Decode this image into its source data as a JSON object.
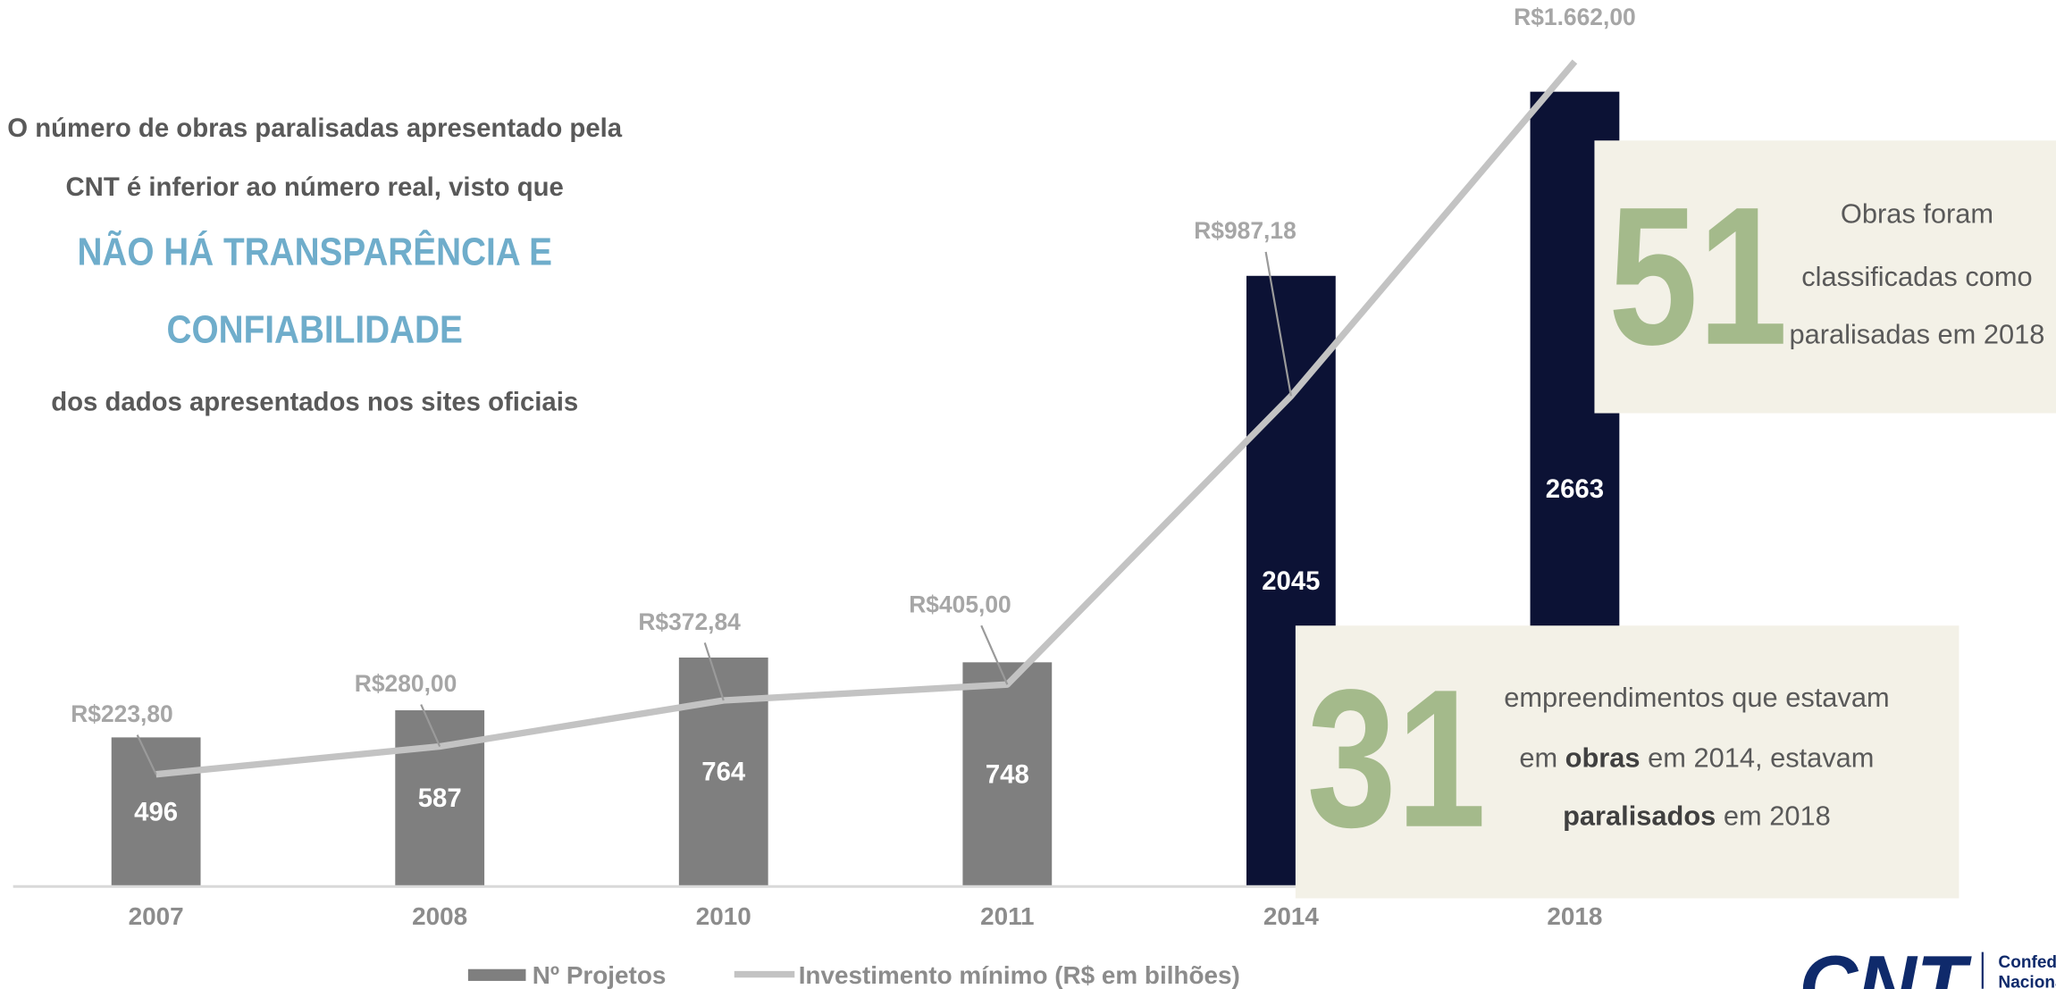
{
  "chart_data": {
    "type": "bar",
    "categories": [
      "2007",
      "2008",
      "2010",
      "2011",
      "2014",
      "2018"
    ],
    "ylim": [
      0,
      2970
    ],
    "y2lim": [
      0,
      1786
    ],
    "legend": "bottom",
    "series": [
      {
        "name": "Nº Projetos",
        "type": "bar",
        "color": "#7f7f7f",
        "colors": [
          "#7f7f7f",
          "#7f7f7f",
          "#7f7f7f",
          "#7f7f7f",
          "#0c1235",
          "#0c1235"
        ],
        "values": [
          496,
          587,
          764,
          748,
          2045,
          2663
        ]
      },
      {
        "name": "Investimento mínimo (R$ em bilhões)",
        "type": "line",
        "color": "#c3c3c3",
        "axis": "y2",
        "values": [
          223.8,
          280.0,
          372.84,
          405.0,
          987.18,
          1662.0
        ],
        "value_labels": [
          "R$223,80",
          "R$280,00",
          "R$372,84",
          "R$405,00",
          "R$987,18",
          "R$1.662,00"
        ]
      }
    ]
  },
  "annotation": {
    "lines": [
      {
        "text": "O número de obras paralisadas apresentado pela",
        "highlight": false
      },
      {
        "text": "CNT é inferior ao número real, visto que",
        "highlight": false
      },
      {
        "text": "NÃO HÁ TRANSPARÊNCIA E",
        "highlight": true
      },
      {
        "text": "CONFIABILIDADE",
        "highlight": true
      },
      {
        "text": "dos dados apresentados nos sites oficiais",
        "highlight": false
      }
    ]
  },
  "boxes": [
    {
      "number": 51,
      "lines": [
        [
          {
            "text": "Obras foram",
            "bold": false
          }
        ],
        [
          {
            "text": "classificadas como",
            "bold": false
          }
        ],
        [
          {
            "text": "paralisadas em 2018",
            "bold": false
          }
        ]
      ]
    },
    {
      "number": 31,
      "lines": [
        [
          {
            "text": "empreendimentos que estavam",
            "bold": false
          }
        ],
        [
          {
            "text": "em ",
            "bold": false
          },
          {
            "text": "obras",
            "bold": true
          },
          {
            "text": " em 2014, estavam",
            "bold": false
          }
        ],
        [
          {
            "text": "paralisados",
            "bold": true
          },
          {
            "text": " em 2018",
            "bold": false
          }
        ]
      ]
    }
  ],
  "logo": {
    "mark": "CNT",
    "lines": [
      "Confede",
      "Naciona"
    ]
  }
}
